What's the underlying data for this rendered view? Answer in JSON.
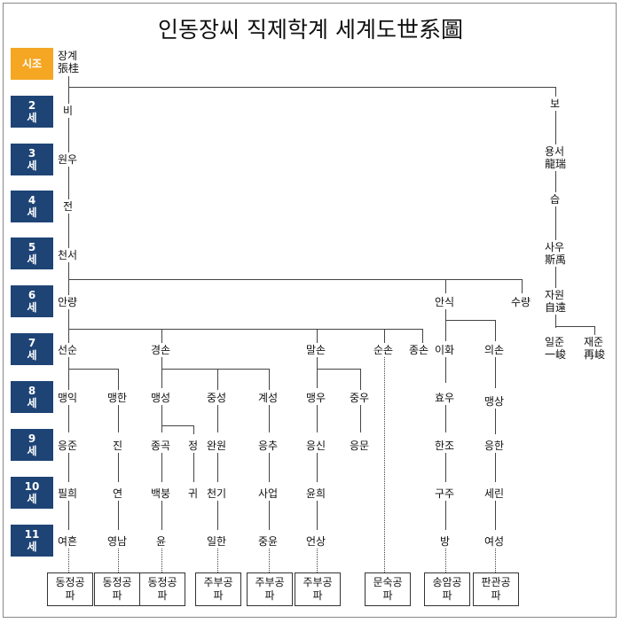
{
  "title": "인동장씨 직제학계 세계도世系圖",
  "generations": [
    "시조",
    "2\n세",
    "3\n세",
    "4\n세",
    "5\n세",
    "6\n세",
    "7\n세",
    "8\n세",
    "9\n세",
    "10\n세",
    "11\n세"
  ],
  "nodes": {
    "janggye": "장계\n張桂",
    "bi": "비",
    "bo": "보",
    "wonu": "원우",
    "yongseo": "용서\n龍瑞",
    "jeon": "전",
    "seup": "습",
    "cheonseo": "천서",
    "sau": "사우\n斯禹",
    "anryang": "안량",
    "ansik": "안식",
    "suryang": "수량",
    "jawon": "자원\n自遠",
    "iljun": "일준\n一峻",
    "jaejun": "재준\n再峻",
    "seonsun": "선순",
    "gyeongson": "경손",
    "malson": "말손",
    "sunson": "순손",
    "jongson": "종손",
    "ihwa": "이화",
    "uison": "의손",
    "maengik": "맹익",
    "maenghan": "맹한",
    "maengseong": "맹성",
    "jungseong": "중성",
    "gyeseong": "계성",
    "maengu": "맹우",
    "jungu": "중우",
    "hyou": "효우",
    "maengsang": "맹상",
    "eungjun": "응준",
    "jin": "진",
    "jonggok": "종곡",
    "jeong": "정",
    "wanwon": "완원",
    "eungchu": "응추",
    "eungsin": "응신",
    "eungmun": "응문",
    "hanjo": "한조",
    "eunghan": "응한",
    "pilhui": "필희",
    "yeon": "연",
    "baekbung": "백붕",
    "gwi": "귀",
    "cheongi": "천기",
    "saeop": "사업",
    "yunhui": "윤희",
    "guju": "구주",
    "serin": "세린",
    "yeoheun": "여흔",
    "yeongnam": "영남",
    "yun": "윤",
    "ilhan": "일한",
    "jungyun": "중윤",
    "eonsang": "언상",
    "bang": "방",
    "yeoseong": "여성"
  },
  "branches": [
    "동정공\n파",
    "동정공\n파",
    "동정공\n파",
    "주부공\n파",
    "주부공\n파",
    "주부공\n파",
    "문숙공\n파",
    "송암공\n파",
    "판관공\n파"
  ],
  "colors": {
    "generation_box": "#1e4476",
    "founder_box": "#f5a623"
  }
}
